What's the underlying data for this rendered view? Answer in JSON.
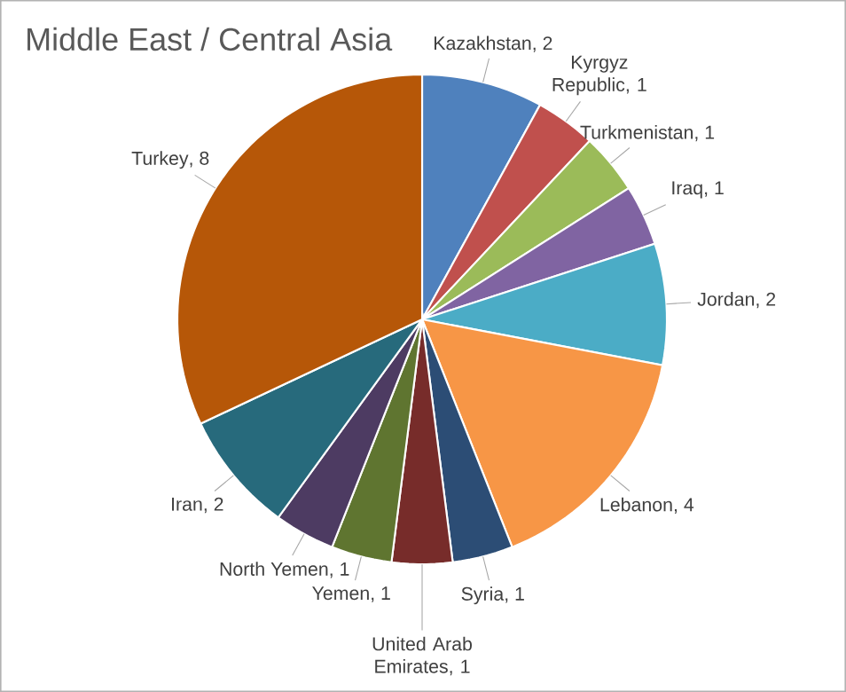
{
  "chart_data": {
    "type": "pie",
    "title": "Middle East / Central Asia",
    "categories": [
      "Kazakhstan",
      "Kyrgyz Republic",
      "Turkmenistan",
      "Iraq",
      "Jordan",
      "Lebanon",
      "Syria",
      "United Arab Emirates",
      "Yemen",
      "North Yemen",
      "Iran",
      "Turkey"
    ],
    "values": [
      2,
      1,
      1,
      1,
      2,
      4,
      1,
      1,
      1,
      1,
      2,
      8
    ],
    "colors": [
      "#4f81bd",
      "#c0504d",
      "#9bbb59",
      "#8064a2",
      "#4bacc6",
      "#f79646",
      "#2c4d75",
      "#772c2a",
      "#5f7530",
      "#4d3b62",
      "#276a7c",
      "#b65708"
    ],
    "value_labels": [
      ", 2",
      ", 1",
      ", 1",
      ", 1",
      ", 2",
      ", 4",
      ", 1",
      ", 1",
      ", 1",
      ", 1",
      ", 2",
      ", 8"
    ]
  }
}
